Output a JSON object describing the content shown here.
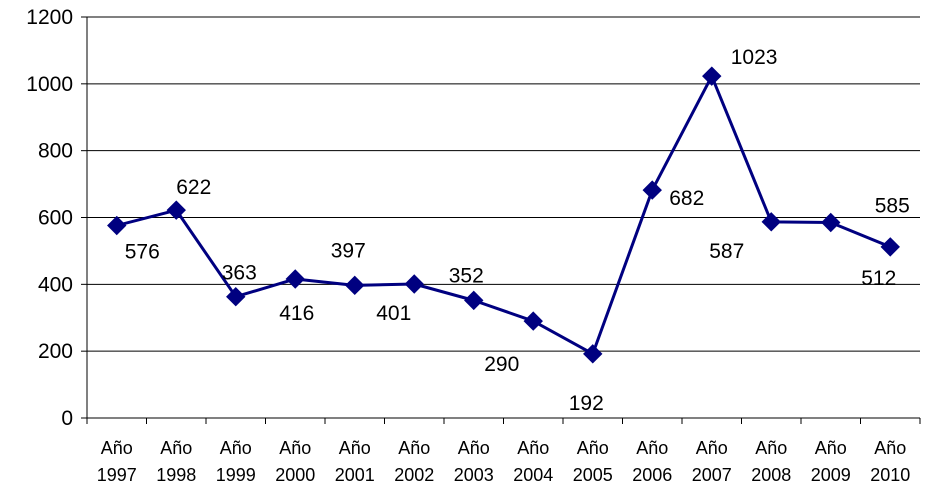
{
  "chart_data": {
    "type": "line",
    "title": "",
    "xlabel": "",
    "ylabel": "",
    "categories": [
      [
        "Año",
        "1997"
      ],
      [
        "Año",
        "1998"
      ],
      [
        "Año",
        "1999"
      ],
      [
        "Año",
        "2000"
      ],
      [
        "Año",
        "2001"
      ],
      [
        "Año",
        "2002"
      ],
      [
        "Año",
        "2003"
      ],
      [
        "Año",
        "2004"
      ],
      [
        "Año",
        "2005"
      ],
      [
        "Año",
        "2006"
      ],
      [
        "Año",
        "2007"
      ],
      [
        "Año",
        "2008"
      ],
      [
        "Año",
        "2009"
      ],
      [
        "Año",
        "2010"
      ]
    ],
    "series": [
      {
        "values": [
          576,
          622,
          363,
          416,
          397,
          401,
          352,
          290,
          192,
          682,
          1023,
          587,
          585,
          512
        ],
        "color": "#000080",
        "marker": "diamond"
      }
    ],
    "data_labels": [
      "576",
      "622",
      "363",
      "416",
      "397",
      "401",
      "352",
      "290",
      "192",
      "682",
      "1023",
      "587",
      "585",
      "512"
    ],
    "ylim": [
      0,
      1200
    ],
    "yticks": [
      0,
      200,
      400,
      600,
      800,
      1000,
      1200
    ],
    "ytick_labels": [
      "0",
      "200",
      "400",
      "600",
      "800",
      "1000",
      "1200"
    ],
    "grid": true,
    "legend": "none"
  }
}
